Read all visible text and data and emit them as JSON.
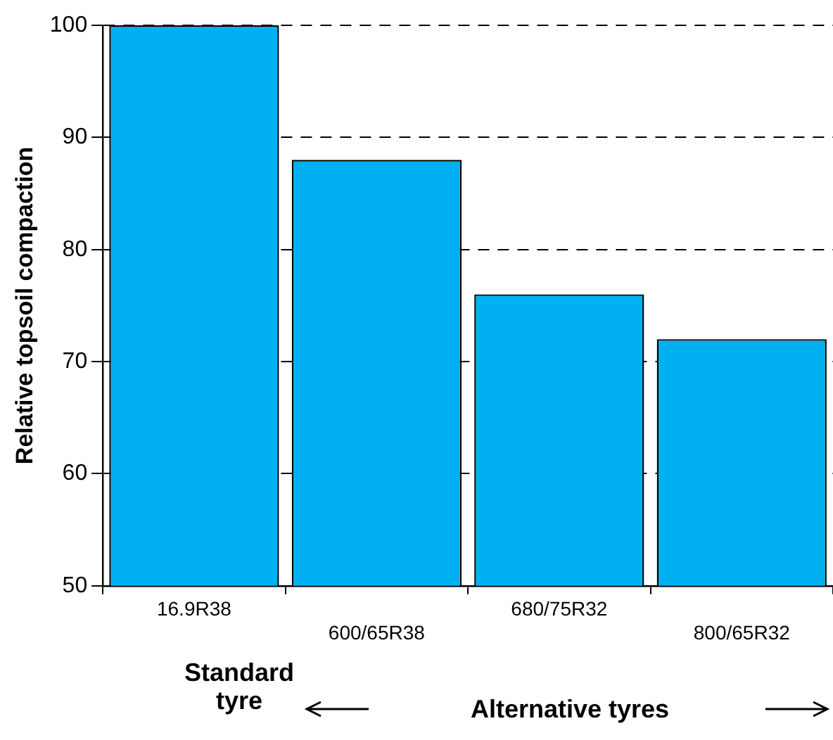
{
  "chart_data": {
    "type": "bar",
    "ylabel": "Relative topsoil compaction",
    "categories": [
      "16.9R38",
      "600/65R38",
      "680/75R32",
      "800/65R32"
    ],
    "values": [
      100,
      88,
      76,
      72
    ],
    "color": "#00b0f0",
    "ylim": [
      50,
      100
    ],
    "yticks": [
      50,
      60,
      70,
      80,
      90,
      100
    ],
    "grid": "y",
    "line_style": "dashed",
    "legend": false,
    "annotations": [
      "Standard tyre",
      "Alternative tyres"
    ]
  }
}
